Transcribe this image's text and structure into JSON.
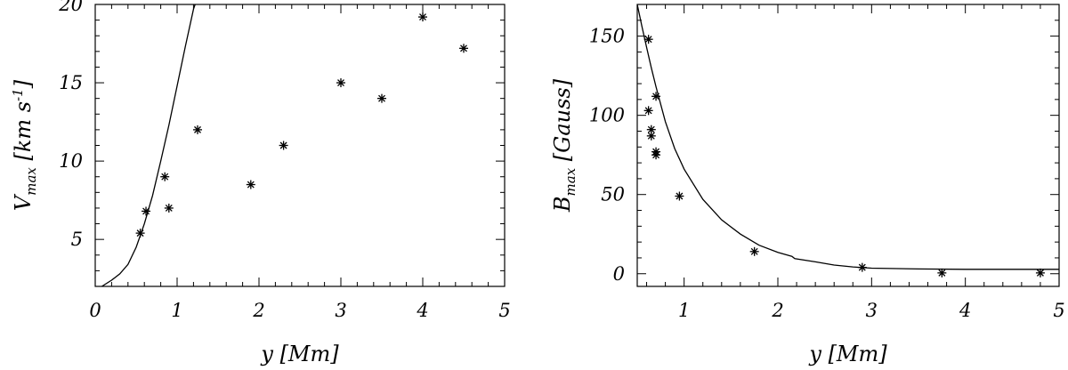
{
  "chart_data": [
    {
      "type": "scatter",
      "xlabel": {
        "var": "y",
        "unit": "[Mm]"
      },
      "ylabel": {
        "var": "V",
        "sub": "max",
        "unit": "[km s",
        "sup": "-1",
        "close": "]"
      },
      "xlim": [
        0,
        5
      ],
      "ylim": [
        2,
        20
      ],
      "xticks": [
        "0",
        "1",
        "2",
        "3",
        "4",
        "5"
      ],
      "yticks": [
        "5",
        "10",
        "15",
        "20"
      ],
      "points": [
        [
          0.55,
          5.4
        ],
        [
          0.62,
          6.8
        ],
        [
          0.85,
          9.0
        ],
        [
          0.9,
          7.0
        ],
        [
          1.25,
          12.0
        ],
        [
          1.9,
          8.5
        ],
        [
          2.3,
          11.0
        ],
        [
          3.0,
          15.0
        ],
        [
          3.5,
          14.0
        ],
        [
          4.0,
          19.2
        ],
        [
          4.5,
          17.2
        ]
      ],
      "curve": [
        [
          0.08,
          2.0
        ],
        [
          0.2,
          2.4
        ],
        [
          0.3,
          2.8
        ],
        [
          0.4,
          3.4
        ],
        [
          0.5,
          4.5
        ],
        [
          0.6,
          6.0
        ],
        [
          0.7,
          7.8
        ],
        [
          0.8,
          10.0
        ],
        [
          0.9,
          12.3
        ],
        [
          1.0,
          14.8
        ],
        [
          1.1,
          17.3
        ],
        [
          1.2,
          19.7
        ],
        [
          1.22,
          20.0
        ]
      ]
    },
    {
      "type": "scatter",
      "xlabel": {
        "var": "y",
        "unit": "[Mm]"
      },
      "ylabel": {
        "var": "B",
        "sub": "max",
        "unit": "[Gauss]"
      },
      "xlim": [
        0.5,
        5
      ],
      "ylim": [
        -8,
        170
      ],
      "xticks": [
        "1",
        "2",
        "3",
        "4",
        "5"
      ],
      "yticks": [
        "0",
        "50",
        "100",
        "150"
      ],
      "points": [
        [
          0.62,
          148
        ],
        [
          0.62,
          103
        ],
        [
          0.65,
          91
        ],
        [
          0.65,
          87
        ],
        [
          0.7,
          112
        ],
        [
          0.7,
          77
        ],
        [
          0.7,
          75
        ],
        [
          0.95,
          49
        ],
        [
          1.75,
          14
        ],
        [
          2.9,
          4
        ],
        [
          3.75,
          0.5
        ],
        [
          4.8,
          0.5
        ]
      ],
      "curve": [
        [
          0.5,
          170
        ],
        [
          0.55,
          156
        ],
        [
          0.6,
          143
        ],
        [
          0.65,
          130
        ],
        [
          0.7,
          118
        ],
        [
          0.8,
          96
        ],
        [
          0.9,
          79
        ],
        [
          1.0,
          66
        ],
        [
          1.2,
          47
        ],
        [
          1.4,
          34
        ],
        [
          1.6,
          25
        ],
        [
          1.8,
          18
        ],
        [
          2.0,
          13.5
        ],
        [
          2.15,
          11
        ],
        [
          2.18,
          9.5
        ],
        [
          2.4,
          7.5
        ],
        [
          2.6,
          5.5
        ],
        [
          2.8,
          4.3
        ],
        [
          3.0,
          3.5
        ],
        [
          3.5,
          3.0
        ],
        [
          4.0,
          2.8
        ],
        [
          4.5,
          2.8
        ],
        [
          5.0,
          2.8
        ]
      ]
    }
  ]
}
